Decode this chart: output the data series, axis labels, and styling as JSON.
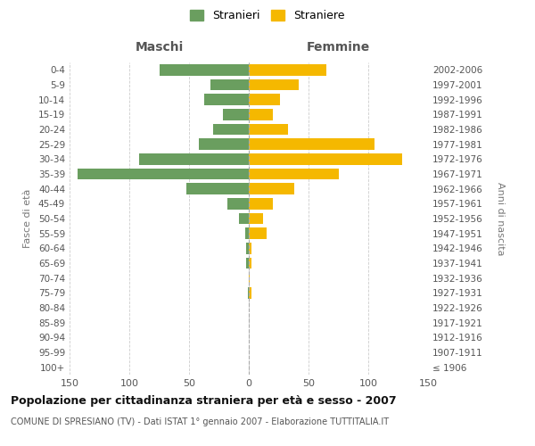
{
  "age_groups": [
    "100+",
    "95-99",
    "90-94",
    "85-89",
    "80-84",
    "75-79",
    "70-74",
    "65-69",
    "60-64",
    "55-59",
    "50-54",
    "45-49",
    "40-44",
    "35-39",
    "30-34",
    "25-29",
    "20-24",
    "15-19",
    "10-14",
    "5-9",
    "0-4"
  ],
  "birth_years": [
    "≤ 1906",
    "1907-1911",
    "1912-1916",
    "1917-1921",
    "1922-1926",
    "1927-1931",
    "1932-1936",
    "1937-1941",
    "1942-1946",
    "1947-1951",
    "1952-1956",
    "1957-1961",
    "1962-1966",
    "1967-1971",
    "1972-1976",
    "1977-1981",
    "1982-1986",
    "1987-1991",
    "1992-1996",
    "1997-2001",
    "2002-2006"
  ],
  "maschi": [
    0,
    0,
    0,
    0,
    0,
    1,
    0,
    2,
    2,
    3,
    8,
    18,
    52,
    143,
    92,
    42,
    30,
    22,
    37,
    32,
    75
  ],
  "femmine": [
    0,
    0,
    0,
    0,
    0,
    2,
    1,
    2,
    2,
    15,
    12,
    20,
    38,
    75,
    128,
    105,
    33,
    20,
    26,
    42,
    65
  ],
  "maschi_color": "#6a9e5f",
  "femmine_color": "#f5b800",
  "legend_maschi": "Stranieri",
  "legend_femmine": "Straniere",
  "title_maschi": "Maschi",
  "title_femmine": "Femmine",
  "ylabel_left": "Fasce di età",
  "ylabel_right": "Anni di nascita",
  "xlim": 150,
  "background_color": "#ffffff",
  "grid_color": "#cccccc",
  "title": "Popolazione per cittadinanza straniera per età e sesso - 2007",
  "subtitle": "COMUNE DI SPRESIANO (TV) - Dati ISTAT 1° gennaio 2007 - Elaborazione TUTTITALIA.IT"
}
